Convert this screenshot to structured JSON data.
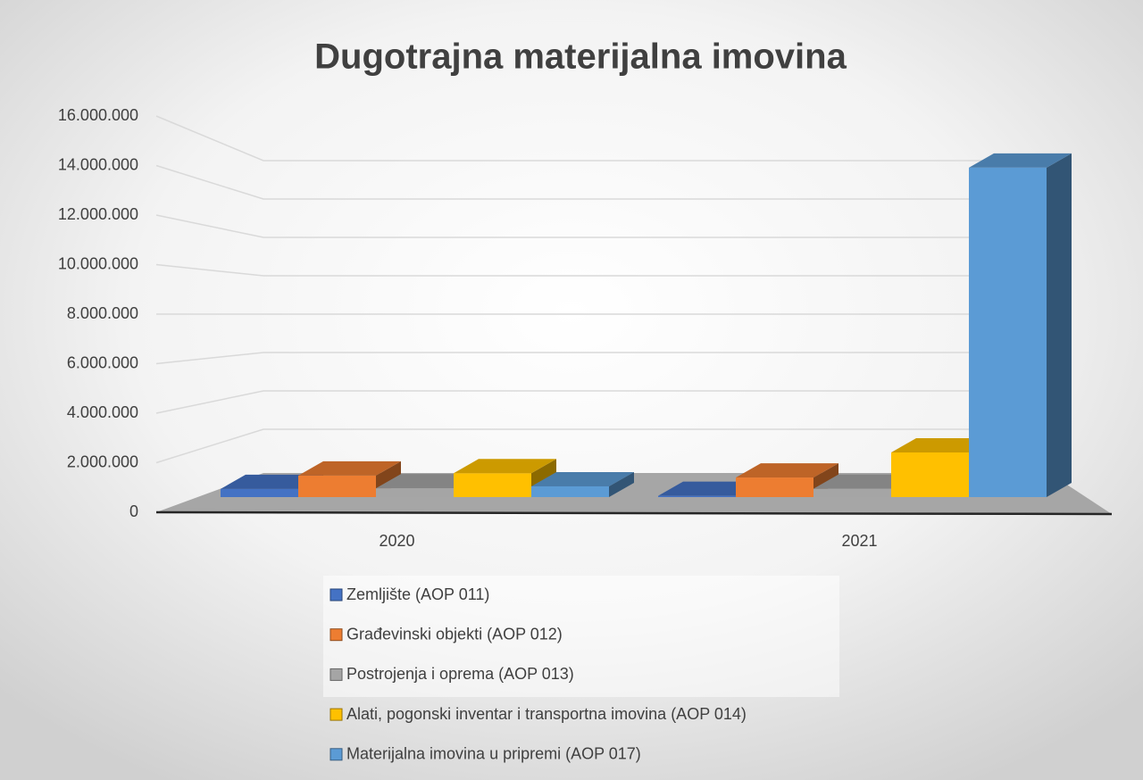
{
  "chart_data": {
    "type": "bar3d",
    "title": "Dugotrajna materijalna imovina",
    "categories": [
      "2020",
      "2021"
    ],
    "series": [
      {
        "name": "Zemljište (AOP 011)",
        "color": "#4472c4",
        "values": [
          340000,
          50000
        ]
      },
      {
        "name": "Građevinski objekti (AOP 012)",
        "color": "#ed7d31",
        "values": [
          900000,
          820000
        ]
      },
      {
        "name": "Postrojenja i oprema (AOP 013)",
        "color": "#a5a5a5",
        "values": [
          370000,
          350000
        ]
      },
      {
        "name": "Alati, pogonski inventar i transportna imovina (AOP 014)",
        "color": "#ffc000",
        "values": [
          1000000,
          1870000
        ]
      },
      {
        "name": "Materijalna imovina u pripremi (AOP 017)",
        "color": "#5b9bd5",
        "values": [
          450000,
          13800000
        ]
      }
    ],
    "ylim": [
      0,
      16000000
    ],
    "yticks": [
      0,
      {
        "value": 2000000,
        "label": "2.000.000"
      },
      {
        "value": 4000000,
        "label": "4.000.000"
      },
      {
        "value": 6000000,
        "label": "6.000.000"
      },
      {
        "value": 8000000,
        "label": "8.000.000"
      },
      {
        "value": 10000000,
        "label": "10.000.000"
      },
      {
        "value": 12000000,
        "label": "12.000.000"
      },
      {
        "value": 14000000,
        "label": "14.000.000"
      },
      {
        "value": 16000000,
        "label": "16.000.000"
      }
    ],
    "grid": true,
    "legend": "bottom"
  }
}
